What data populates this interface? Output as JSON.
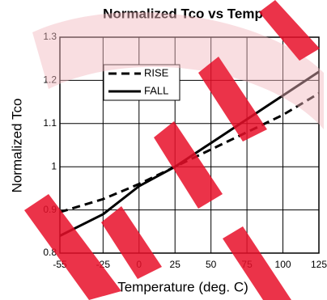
{
  "chart_data": {
    "type": "line",
    "title": "Normalized Tco vs Temp",
    "x_label": "Temperature (deg. C)",
    "y_label": "Normalized Tco",
    "x": [
      -55,
      -25,
      0,
      25,
      50,
      75,
      100,
      125
    ],
    "series": [
      {
        "name": "RISE",
        "color": "#000000",
        "dash": true,
        "values": [
          0.895,
          0.925,
          0.96,
          1.0,
          1.04,
          1.08,
          1.12,
          1.17
        ]
      },
      {
        "name": "FALL",
        "color": "#000000",
        "dash": false,
        "values": [
          0.84,
          0.89,
          0.955,
          1.0,
          1.055,
          1.11,
          1.165,
          1.22
        ]
      }
    ],
    "xlim": [
      -55,
      125
    ],
    "xticks": [
      -55,
      -25,
      0,
      25,
      50,
      75,
      100,
      125
    ],
    "ylim": [
      0.8,
      1.3
    ],
    "yticks": [
      0.8,
      0.9,
      1,
      1.1,
      1.2,
      1.3
    ],
    "grid": true,
    "legend": "upper left"
  }
}
